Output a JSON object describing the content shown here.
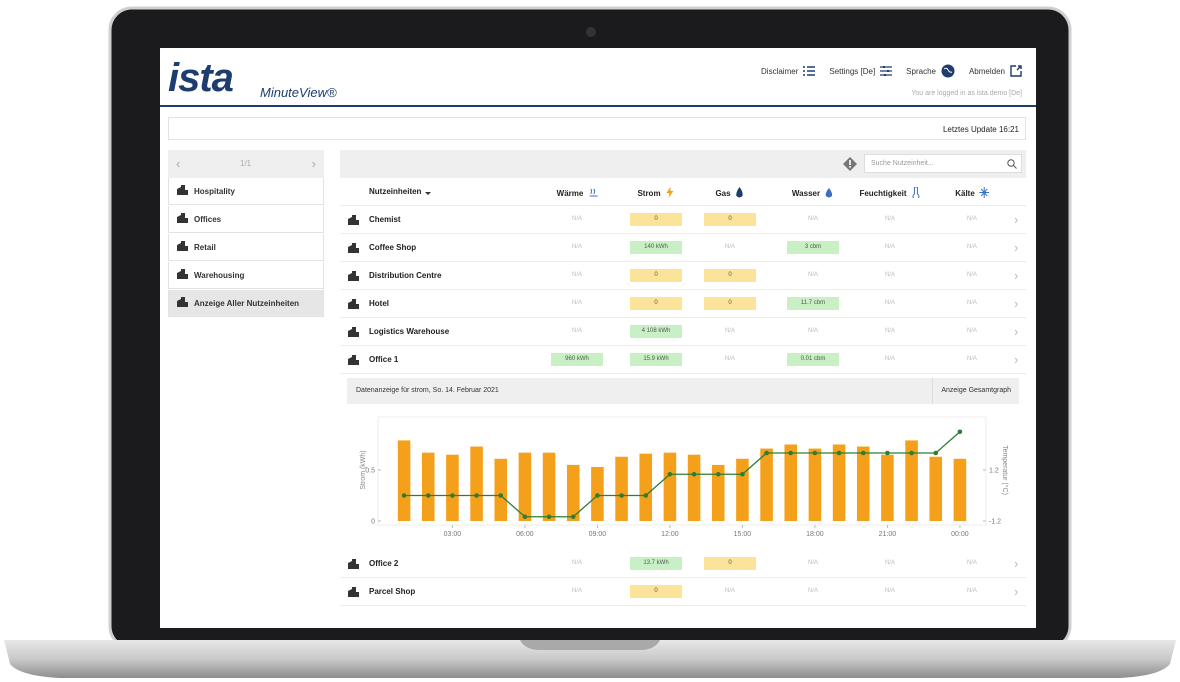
{
  "header": {
    "logo": "ista",
    "product": "MinuteView®",
    "nav": [
      "Disclaimer",
      "Settings [De]",
      "Sprache",
      "Abmelden"
    ],
    "login_note": "You are logged in as ista.demo [De]"
  },
  "status": "Letztes Update 16:21",
  "sidebar": {
    "pager": "1/1",
    "items": [
      "Hospitality",
      "Offices",
      "Retail",
      "Warehousing",
      "Anzeige Aller Nutzeinheiten"
    ]
  },
  "search_placeholder": "Suche Nutzeinheit...",
  "table": {
    "columns": [
      "Nutzeinheiten",
      "Wärme",
      "Strom",
      "Gas",
      "Wasser",
      "Feuchtigkeit",
      "Kälte"
    ],
    "rows": [
      {
        "name": "Chemist",
        "cells": [
          "N/A",
          {
            "text": "0",
            "color": "#fbe49a"
          },
          {
            "text": "0",
            "color": "#fbe49a"
          },
          "N/A",
          "N/A",
          "N/A"
        ]
      },
      {
        "name": "Coffee Shop",
        "cells": [
          "N/A",
          {
            "text": "140 kWh",
            "color": "#c9f0c4"
          },
          "N/A",
          {
            "text": "3 cbm",
            "color": "#c9f0c4"
          },
          "N/A",
          "N/A"
        ]
      },
      {
        "name": "Distribution Centre",
        "cells": [
          "N/A",
          {
            "text": "0",
            "color": "#fbe49a"
          },
          {
            "text": "0",
            "color": "#fbe49a"
          },
          "N/A",
          "N/A",
          "N/A"
        ]
      },
      {
        "name": "Hotel",
        "cells": [
          "N/A",
          {
            "text": "0",
            "color": "#fbe49a"
          },
          {
            "text": "0",
            "color": "#fbe49a"
          },
          {
            "text": "11.7 cbm",
            "color": "#c9f0c4"
          },
          "N/A",
          "N/A"
        ]
      },
      {
        "name": "Logistics Warehouse",
        "cells": [
          "N/A",
          {
            "text": "4 108 kWh",
            "color": "#c9f0c4"
          },
          "N/A",
          "N/A",
          "N/A",
          "N/A"
        ]
      },
      {
        "name": "Office 1",
        "cells": [
          {
            "text": "960 kWh",
            "color": "#c9f0c4"
          },
          {
            "text": "15.9 kWh",
            "color": "#c9f0c4"
          },
          "N/A",
          {
            "text": "0.01 cbm",
            "color": "#c9f0c4"
          },
          "N/A",
          "N/A"
        ],
        "detail": {
          "title": "Datenanzeige für strom, So. 14. Februar 2021",
          "button": "Anzeige Gesamtgraph"
        }
      },
      {
        "name": "Office 2",
        "cells": [
          "N/A",
          {
            "text": "13.7 kWh",
            "color": "#c9f0c4"
          },
          {
            "text": "0",
            "color": "#fbe49a"
          },
          "N/A",
          "N/A",
          "N/A"
        ]
      },
      {
        "name": "Parcel Shop",
        "cells": [
          "N/A",
          {
            "text": "0",
            "color": "#fbe49a"
          },
          "N/A",
          "N/A",
          "N/A",
          "N/A"
        ]
      }
    ]
  },
  "chart_data": {
    "type": "bar",
    "ylabel": "Strom (kWh)",
    "y2label": "Temperatur (°C)",
    "categories": [
      null,
      null,
      "03:00",
      null,
      null,
      "06:00",
      null,
      null,
      "09:00",
      null,
      null,
      "12:00",
      null,
      null,
      "15:00",
      null,
      null,
      "18:00",
      null,
      null,
      "21:00",
      null,
      null,
      "00:00"
    ],
    "series": [
      {
        "color": "#f5a01a",
        "values": [
          0.79,
          0.67,
          0.65,
          0.73,
          0.61,
          0.67,
          0.67,
          0.55,
          0.53,
          0.63,
          0.66,
          0.67,
          0.65,
          0.55,
          0.61,
          0.71,
          0.75,
          0.71,
          0.75,
          0.73,
          0.65,
          0.79,
          0.63,
          0.61
        ]
      },
      {
        "type": "line",
        "axis": "y2",
        "color": "#2e7d32",
        "values": [
          0,
          0,
          0,
          0,
          0,
          -1,
          -1,
          -1,
          0,
          0,
          0,
          1,
          1,
          1,
          1,
          2,
          2,
          2,
          2,
          2,
          2,
          2,
          2,
          3
        ]
      }
    ],
    "ylim": [
      0,
      1
    ],
    "yticks": [
      0,
      0.5
    ],
    "y2lim": [
      -1.2,
      3.6
    ],
    "y2ticks": [
      -1.2,
      1.2
    ]
  }
}
